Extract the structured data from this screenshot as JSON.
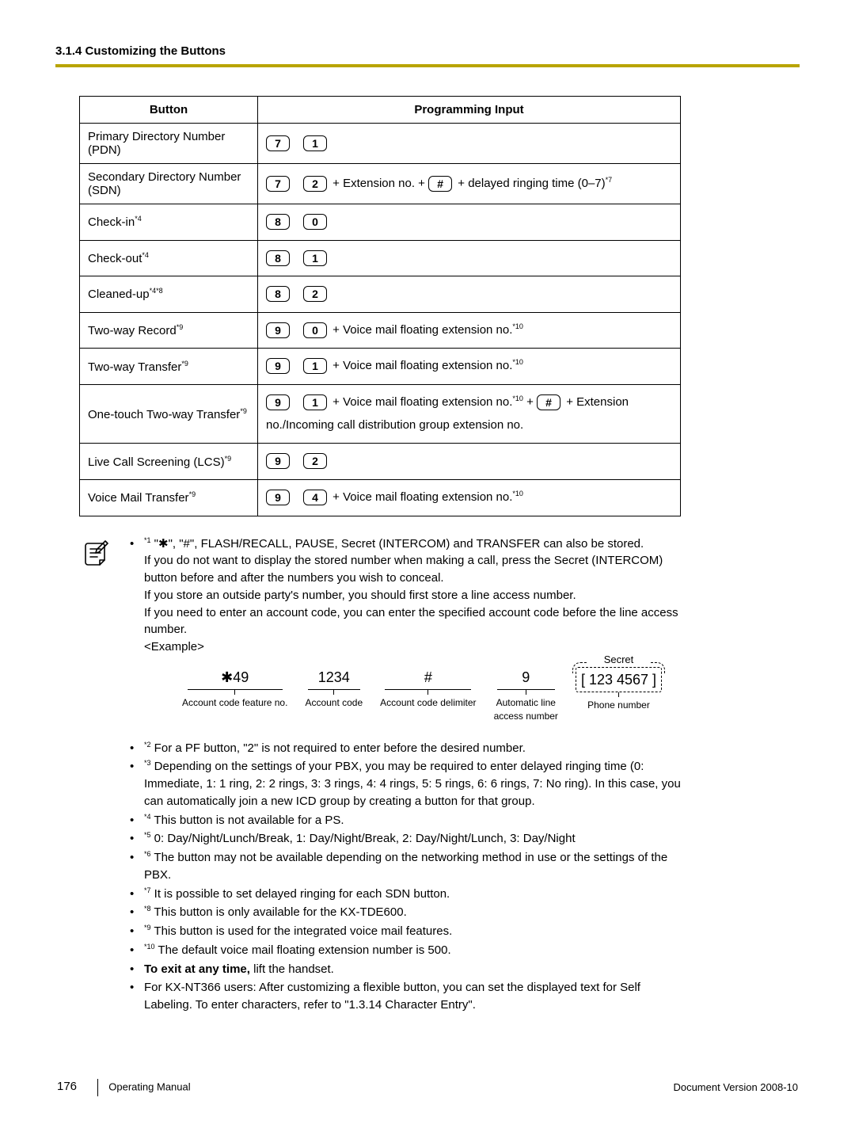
{
  "header": {
    "section": "3.1.4 Customizing the Buttons"
  },
  "columns": {
    "button": "Button",
    "input": "Programming Input"
  },
  "rows": [
    {
      "label": "Primary Directory Number (PDN)",
      "keys": [
        "7",
        "1"
      ],
      "suffix": ""
    },
    {
      "label": "Secondary Directory Number (SDN)",
      "keys": [
        "7",
        "2"
      ],
      "mid": " + Extension no. + ",
      "keys2": [
        "#"
      ],
      "suffix": " + delayed ringing time (0–7)",
      "sup": "*7"
    },
    {
      "label": "Check-in",
      "labelsup": "*4",
      "keys": [
        "8",
        "0"
      ],
      "suffix": ""
    },
    {
      "label": "Check-out",
      "labelsup": "*4",
      "keys": [
        "8",
        "1"
      ],
      "suffix": ""
    },
    {
      "label": "Cleaned-up",
      "labelsup": "*4*8",
      "keys": [
        "8",
        "2"
      ],
      "suffix": ""
    },
    {
      "label": "Two-way Record",
      "labelsup": "*9",
      "keys": [
        "9",
        "0"
      ],
      "suffix": " + Voice mail floating extension no.",
      "sup": "*10"
    },
    {
      "label": "Two-way Transfer",
      "labelsup": "*9",
      "keys": [
        "9",
        "1"
      ],
      "suffix": " + Voice mail floating extension no.",
      "sup": "*10"
    },
    {
      "label": "One-touch Two-way Transfer",
      "labelsup": "*9",
      "keys": [
        "9",
        "1"
      ],
      "mid": " + Voice mail floating extension no.",
      "midsup": "*10",
      "mid2": " + ",
      "keys2": [
        "#"
      ],
      "suffix": " + Extension no./Incoming call distribution group extension no."
    },
    {
      "label": "Live Call Screening (LCS)",
      "labelsup": "*9",
      "keys": [
        "9",
        "2"
      ],
      "suffix": ""
    },
    {
      "label": "Voice Mail Transfer",
      "labelsup": "*9",
      "keys": [
        "9",
        "4"
      ],
      "suffix": " + Voice mail floating extension no.",
      "sup": "*10"
    }
  ],
  "note1": {
    "sup": "*1",
    "line1": " \"✱\", \"#\", FLASH/RECALL, PAUSE, Secret (INTERCOM) and TRANSFER can also be stored.",
    "line2": "If you do not want to display the stored number when making a call, press the Secret (INTERCOM) button before and after the numbers you wish to conceal.",
    "line3": "If you store an outside party's number, you should first store a line access number.",
    "line4": "If you need to enter an account code, you can enter the specified account code before the line access number.",
    "example_label": "<Example>"
  },
  "example": {
    "items": [
      {
        "val": "✱49",
        "label": "Account code feature no."
      },
      {
        "val": "1234",
        "label": "Account code"
      },
      {
        "val": "#",
        "label": "Account code delimiter"
      },
      {
        "val": "9",
        "label": "Automatic line\naccess number"
      }
    ],
    "secret": {
      "label": "Secret",
      "val": "[ 123 4567 ]",
      "caption": "Phone number"
    }
  },
  "notes_rest": [
    {
      "sup": "*2",
      "text": " For a PF button, \"2\" is not required to enter before the desired number."
    },
    {
      "sup": "*3",
      "text": " Depending on the settings of your PBX, you may be required to enter delayed ringing time (0: Immediate, 1: 1 ring, 2: 2 rings, 3: 3 rings, 4: 4 rings, 5: 5 rings, 6: 6 rings, 7: No ring). In this case, you can automatically join a new ICD group by creating a button for that group."
    },
    {
      "sup": "*4",
      "text": " This button is not available for a PS."
    },
    {
      "sup": "*5",
      "text": " 0: Day/Night/Lunch/Break, 1: Day/Night/Break, 2: Day/Night/Lunch, 3: Day/Night"
    },
    {
      "sup": "*6",
      "text": " The button may not be available depending on the networking method in use or the settings of the PBX."
    },
    {
      "sup": "*7",
      "text": " It is possible to set delayed ringing for each SDN button."
    },
    {
      "sup": "*8",
      "text": " This button is only available for the KX-TDE600."
    },
    {
      "sup": "*9",
      "text": " This button is used for the integrated voice mail features."
    },
    {
      "sup": "*10",
      "text": " The default voice mail floating extension number is 500."
    }
  ],
  "note_exit_bold": "To exit at any time,",
  "note_exit_rest": " lift the handset.",
  "note_nt366": "For KX-NT366 users: After customizing a flexible button, you can set the displayed text for Self Labeling. To enter characters, refer to \"1.3.14  Character Entry\".",
  "footer": {
    "page": "176",
    "title": "Operating Manual",
    "version": "Document Version  2008-10"
  }
}
